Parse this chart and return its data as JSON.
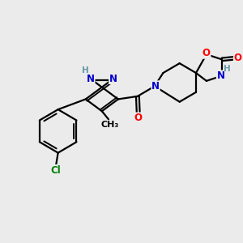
{
  "bg_color": "#ebebeb",
  "bond_color": "#000000",
  "bond_width": 1.6,
  "atom_colors": {
    "N": "#0000cc",
    "O": "#ff0000",
    "Cl": "#008000",
    "C": "#000000",
    "H": "#6699aa"
  },
  "font_size_atom": 8.5,
  "font_size_small": 7.5
}
